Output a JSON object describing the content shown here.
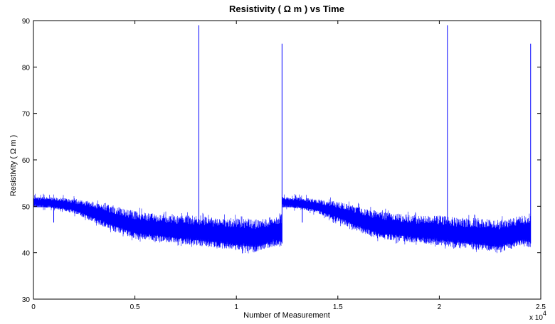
{
  "chart_data": {
    "type": "line",
    "title": "Resistivity ( Ω m ) vs Time",
    "xlabel": "Number of Measurement",
    "ylabel": "Resistivity (   Ω m )",
    "x_multiplier": "x 10",
    "x_multiplier_exp": "4",
    "xlim": [
      0,
      2.5
    ],
    "ylim": [
      30,
      90
    ],
    "xticks": [
      "0",
      "0.5",
      "1",
      "1.5",
      "2",
      "2.5"
    ],
    "xtick_values": [
      0,
      0.5,
      1,
      1.5,
      2,
      2.5
    ],
    "yticks": [
      "30",
      "40",
      "50",
      "60",
      "70",
      "80",
      "90"
    ],
    "ytick_values": [
      30,
      40,
      50,
      60,
      70,
      80,
      90
    ],
    "grid": false,
    "color": "#0000ff",
    "series": [
      {
        "segments": [
          {
            "x": [
              0,
              0.1,
              0.2,
              0.3,
              0.4,
              0.5,
              0.6,
              0.7,
              0.8,
              0.9,
              1.0,
              1.1,
              1.2,
              1.225
            ],
            "upper": [
              52,
              52,
              51.5,
              51,
              50,
              49,
              48.5,
              48,
              48,
              47.5,
              47.5,
              47,
              48,
              48.5
            ],
            "lower": [
              50,
              49.5,
              48.5,
              46.5,
              44.5,
              43,
              42.5,
              42,
              41.5,
              41,
              40.5,
              40,
              41.5,
              41
            ]
          },
          {
            "x": [
              1.225,
              1.3,
              1.4,
              1.5,
              1.6,
              1.7,
              1.8,
              1.9,
              2.0,
              2.1,
              2.2,
              2.3,
              2.4,
              2.45
            ],
            "upper": [
              52,
              52,
              51.5,
              51,
              50,
              49,
              48.5,
              48,
              48,
              47.5,
              47.5,
              47,
              48,
              48.5
            ],
            "lower": [
              50,
              49.5,
              48.5,
              46.5,
              44.5,
              43,
              42.5,
              42,
              41.5,
              41,
              40.5,
              40,
              41.5,
              41
            ]
          }
        ],
        "spikes": [
          {
            "x": 0.815,
            "y": 89
          },
          {
            "x": 1.225,
            "y": 85
          },
          {
            "x": 2.04,
            "y": 89
          },
          {
            "x": 2.45,
            "y": 85
          },
          {
            "x": 0.1,
            "y": 46.5
          },
          {
            "x": 1.325,
            "y": 46.5
          }
        ]
      }
    ]
  }
}
